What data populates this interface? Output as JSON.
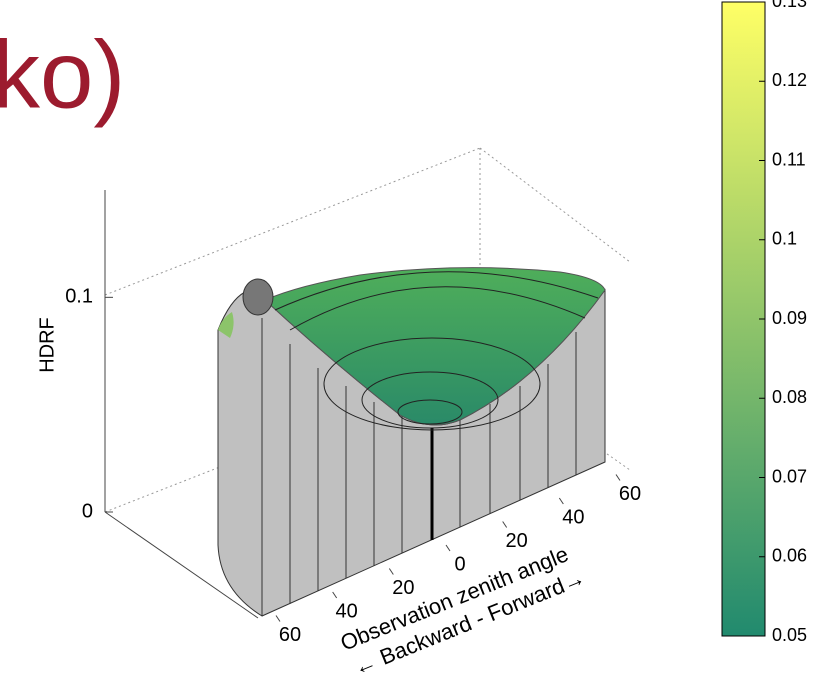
{
  "chart_data": {
    "type": "surface3d",
    "title": "ko)",
    "zlabel": "HDRF",
    "xlabel": "Observation zenith angle",
    "xlabel2": "← Backward - Forward→",
    "xlim": [
      -60,
      60
    ],
    "xticks": [
      {
        "value": -60,
        "label": "60"
      },
      {
        "value": -40,
        "label": "40"
      },
      {
        "value": -20,
        "label": "20"
      },
      0,
      {
        "value": 20,
        "label": "20"
      },
      {
        "value": 40,
        "label": "40"
      },
      {
        "value": 60,
        "label": "60"
      }
    ],
    "zlim": [
      0,
      0.15
    ],
    "zticks": [
      0,
      0.1
    ],
    "colorbar": {
      "clim": [
        0.05,
        0.13
      ],
      "ticks": [
        0.05,
        0.06,
        0.07,
        0.08,
        0.09,
        0.1,
        0.11,
        0.12,
        0.13
      ],
      "colors": [
        "#218a6e",
        "#ffff66"
      ]
    }
  }
}
